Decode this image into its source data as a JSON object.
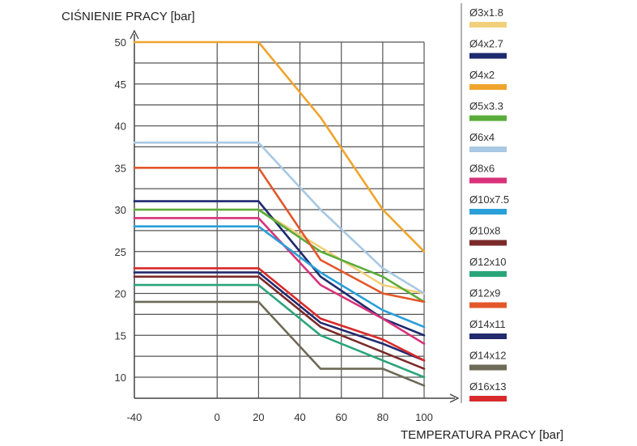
{
  "chart_data": {
    "type": "line",
    "ylabel": "CIŚNIENIE PRACY [bar]",
    "xlabel": "TEMPERATURA PRACY [bar]",
    "xlim": [
      -40,
      100
    ],
    "ylim": [
      8,
      50
    ],
    "xticks": [
      -40,
      0,
      20,
      40,
      60,
      80,
      100
    ],
    "xtick_labels": [
      "-40",
      "0",
      "20",
      "40",
      "60",
      "80",
      "100"
    ],
    "yticks": [
      10,
      15,
      20,
      25,
      30,
      35,
      40,
      45,
      50
    ],
    "ytick_labels": [
      "10",
      "15",
      "20",
      "25",
      "30",
      "35",
      "40",
      "45",
      "50"
    ],
    "grid": true,
    "legend_position": "right",
    "series": [
      {
        "name": "Ø3x1.8",
        "color": "#f2cf7a",
        "x": [
          -40,
          20,
          50,
          80,
          100
        ],
        "y": [
          30,
          30,
          25.5,
          21,
          20
        ]
      },
      {
        "name": "Ø4x2.7",
        "color": "#1e2a6e",
        "x": [
          -40,
          20,
          50,
          80,
          100
        ],
        "y": [
          31,
          31,
          22,
          17,
          15
        ]
      },
      {
        "name": "Ø4x2",
        "color": "#f0a42c",
        "x": [
          -40,
          20,
          50,
          80,
          100
        ],
        "y": [
          50,
          50,
          41,
          30,
          25
        ]
      },
      {
        "name": "Ø5x3.3",
        "color": "#5aac3a",
        "x": [
          -40,
          20,
          50,
          80,
          100
        ],
        "y": [
          30,
          30,
          25,
          22,
          19
        ]
      },
      {
        "name": "Ø6x4",
        "color": "#a8c8e3",
        "x": [
          -40,
          20,
          50,
          80,
          100
        ],
        "y": [
          38,
          38,
          30,
          23,
          20
        ]
      },
      {
        "name": "Ø8x6",
        "color": "#d8327a",
        "x": [
          -40,
          20,
          50,
          80,
          100
        ],
        "y": [
          29,
          29,
          21,
          17,
          14
        ]
      },
      {
        "name": "Ø10x7.5",
        "color": "#2a9fd8",
        "x": [
          -40,
          20,
          50,
          80,
          100
        ],
        "y": [
          28,
          28,
          22.5,
          18,
          16
        ]
      },
      {
        "name": "Ø10x8",
        "color": "#7b2a2a",
        "x": [
          -40,
          20,
          50,
          80,
          100
        ],
        "y": [
          22,
          22,
          16,
          13,
          11
        ]
      },
      {
        "name": "Ø12x10",
        "color": "#2aa57a",
        "x": [
          -40,
          20,
          50,
          80,
          100
        ],
        "y": [
          21,
          21,
          15,
          12,
          10
        ]
      },
      {
        "name": "Ø12x9",
        "color": "#e3572a",
        "x": [
          -40,
          20,
          50,
          80,
          100
        ],
        "y": [
          35,
          35,
          24,
          20,
          19
        ]
      },
      {
        "name": "Ø14x11",
        "color": "#232a6e",
        "x": [
          -40,
          20,
          50,
          80,
          100
        ],
        "y": [
          22.5,
          22.5,
          16.5,
          14,
          12
        ]
      },
      {
        "name": "Ø14x12",
        "color": "#6e6a58",
        "x": [
          -40,
          20,
          50,
          80,
          100
        ],
        "y": [
          19,
          19,
          11,
          11,
          9
        ]
      },
      {
        "name": "Ø16x13",
        "color": "#d82a2a",
        "x": [
          -40,
          20,
          50,
          80,
          100
        ],
        "y": [
          23,
          23,
          17,
          14.5,
          12
        ]
      }
    ]
  }
}
